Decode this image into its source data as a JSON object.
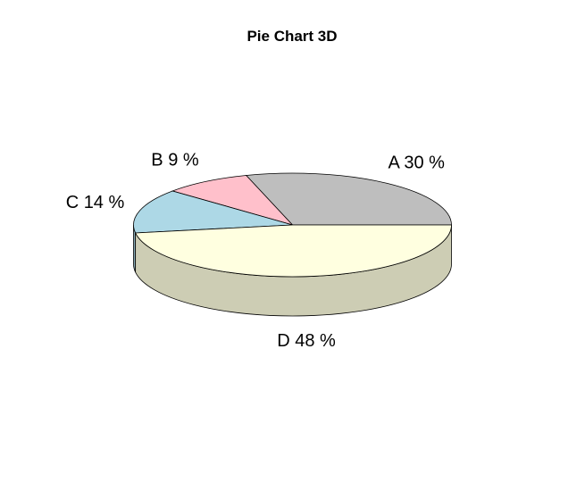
{
  "chart_data": {
    "type": "pie",
    "title": "Pie Chart 3D",
    "three_d": true,
    "slices": [
      {
        "category": "A",
        "value": 30,
        "label": "A 30 %",
        "color": "#bebebe",
        "side_color": "#999999"
      },
      {
        "category": "B",
        "value": 9,
        "label": "B 9 %",
        "color": "#ffc0cb",
        "side_color": "#cc9aa2"
      },
      {
        "category": "C",
        "value": 14,
        "label": "C 14 %",
        "color": "#add8e6",
        "side_color": "#8aadb8"
      },
      {
        "category": "D",
        "value": 48,
        "label": "D 48 %",
        "color": "#ffffe0",
        "side_color": "#cdcdb4"
      }
    ]
  }
}
